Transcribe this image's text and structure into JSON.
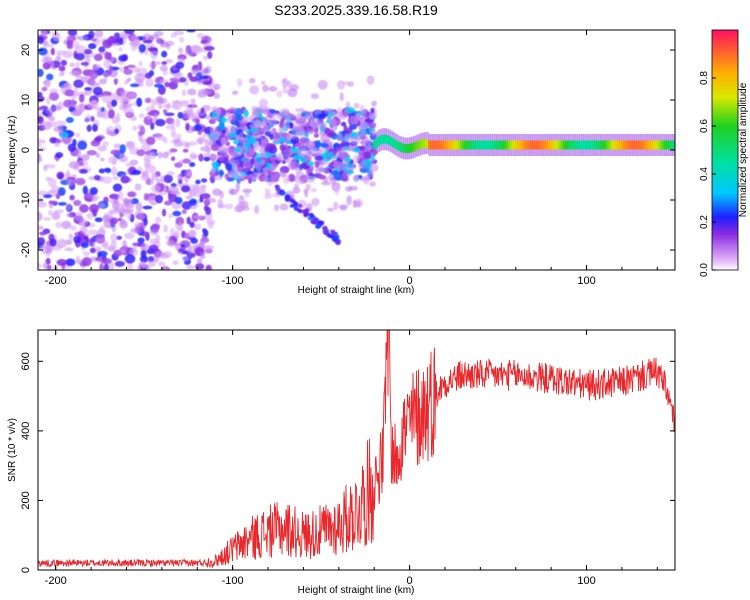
{
  "title": "S233.2025.339.16.58.R19",
  "chart_data": [
    {
      "type": "heatmap",
      "name": "spectrogram",
      "xlabel": "Height of straight line (km)",
      "ylabel": "Frequency (Hz)",
      "xlim": [
        -210,
        150
      ],
      "ylim": [
        -24,
        24
      ],
      "xticks": [
        -200,
        -100,
        0,
        100
      ],
      "yticks": [
        -20,
        -10,
        0,
        10,
        20
      ],
      "xtick_labels": [
        "-200",
        "-100",
        "0",
        "100"
      ],
      "ytick_labels": [
        "-20",
        "-10",
        "0",
        "10",
        "20"
      ],
      "colorbar": {
        "label": "Normalized spectral amplitude",
        "range": [
          0,
          1
        ],
        "ticks": [
          0.0,
          0.2,
          0.4,
          0.6,
          0.8
        ],
        "tick_labels": [
          "0.0",
          "0.2",
          "0.4",
          "0.6",
          "0.8"
        ]
      },
      "regions": [
        {
          "x_range": [
            -210,
            -112
          ],
          "freq_range": [
            -24,
            24
          ],
          "amplitude": [
            0.05,
            0.25
          ],
          "description": "diffuse noise"
        },
        {
          "x_range": [
            -112,
            -20
          ],
          "freq_range": [
            -6,
            8
          ],
          "amplitude": [
            0.2,
            0.45
          ],
          "description": "scattered signal"
        },
        {
          "x_range": [
            -75,
            -40
          ],
          "freq_range": [
            -18,
            -8
          ],
          "amplitude": [
            0.2,
            0.3
          ],
          "description": "descending branch"
        },
        {
          "x_range": [
            -20,
            150
          ],
          "freq_center": [
            1,
            1
          ],
          "amplitude": [
            0.6,
            0.95
          ],
          "description": "carrier line"
        }
      ]
    },
    {
      "type": "line",
      "name": "snr",
      "xlabel": "Height of straight line (km)",
      "ylabel": "SNR (10 * v/v)",
      "xlim": [
        -210,
        150
      ],
      "ylim": [
        0,
        690
      ],
      "xticks": [
        -200,
        -100,
        0,
        100
      ],
      "yticks": [
        0,
        200,
        400,
        600
      ],
      "xtick_labels": [
        "-200",
        "-100",
        "0",
        "100"
      ],
      "ytick_labels": [
        "0",
        "200",
        "400",
        "600"
      ],
      "color": "#e8282c",
      "x": [
        -210,
        -180,
        -150,
        -120,
        -110,
        -100,
        -90,
        -80,
        -70,
        -60,
        -50,
        -40,
        -30,
        -20,
        -15,
        -12,
        -10,
        -5,
        0,
        10,
        20,
        30,
        40,
        60,
        80,
        100,
        120,
        140,
        145,
        150
      ],
      "y": [
        20,
        20,
        20,
        20,
        25,
        60,
        90,
        110,
        120,
        100,
        110,
        130,
        170,
        250,
        320,
        690,
        300,
        380,
        420,
        470,
        540,
        560,
        560,
        560,
        550,
        530,
        540,
        570,
        520,
        420
      ]
    }
  ]
}
